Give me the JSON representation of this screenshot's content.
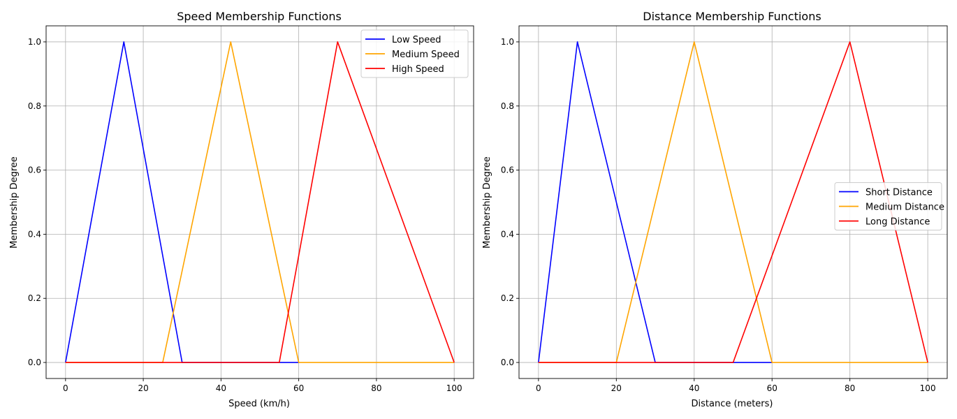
{
  "colors": {
    "grid": "#b0b0b0",
    "axis": "#000000",
    "legend_border": "#cccccc",
    "legend_bg": "#ffffff"
  },
  "chart_data": [
    {
      "type": "line",
      "title": "Speed Membership Functions",
      "xlabel": "Speed (km/h)",
      "ylabel": "Membership Degree",
      "xlim": [
        -5,
        105
      ],
      "ylim": [
        -0.05,
        1.05
      ],
      "xticks": [
        0,
        20,
        40,
        60,
        80,
        100
      ],
      "yticks": [
        0.0,
        0.2,
        0.4,
        0.6,
        0.8,
        1.0
      ],
      "xtick_labels": [
        "0",
        "20",
        "40",
        "60",
        "80",
        "100"
      ],
      "ytick_labels": [
        "0.0",
        "0.2",
        "0.4",
        "0.6",
        "0.8",
        "1.0"
      ],
      "grid": true,
      "legend_position": "top-right",
      "series": [
        {
          "name": "Low Speed",
          "color": "#0000ff",
          "x": [
            0,
            15,
            30,
            60
          ],
          "y": [
            0,
            1,
            0,
            0
          ]
        },
        {
          "name": "Medium Speed",
          "color": "#ffa500",
          "x": [
            0,
            25,
            42.5,
            60,
            100
          ],
          "y": [
            0,
            0,
            1,
            0,
            0
          ]
        },
        {
          "name": "High Speed",
          "color": "#ff0000",
          "x": [
            0,
            55,
            70,
            100
          ],
          "y": [
            0,
            0,
            1,
            0
          ]
        }
      ]
    },
    {
      "type": "line",
      "title": "Distance Membership Functions",
      "xlabel": "Distance (meters)",
      "ylabel": "Membership Degree",
      "xlim": [
        -5,
        105
      ],
      "ylim": [
        -0.05,
        1.05
      ],
      "xticks": [
        0,
        20,
        40,
        60,
        80,
        100
      ],
      "yticks": [
        0.0,
        0.2,
        0.4,
        0.6,
        0.8,
        1.0
      ],
      "xtick_labels": [
        "0",
        "20",
        "40",
        "60",
        "80",
        "100"
      ],
      "ytick_labels": [
        "0.0",
        "0.2",
        "0.4",
        "0.6",
        "0.8",
        "1.0"
      ],
      "grid": true,
      "legend_position": "center-right",
      "series": [
        {
          "name": "Short Distance",
          "color": "#0000ff",
          "x": [
            0,
            10,
            30,
            60
          ],
          "y": [
            0,
            1,
            0,
            0
          ]
        },
        {
          "name": "Medium Distance",
          "color": "#ffa500",
          "x": [
            0,
            20,
            40,
            60,
            100
          ],
          "y": [
            0,
            0,
            1,
            0,
            0
          ]
        },
        {
          "name": "Long Distance",
          "color": "#ff0000",
          "x": [
            0,
            50,
            80,
            100
          ],
          "y": [
            0,
            0,
            1,
            0
          ]
        }
      ]
    }
  ]
}
